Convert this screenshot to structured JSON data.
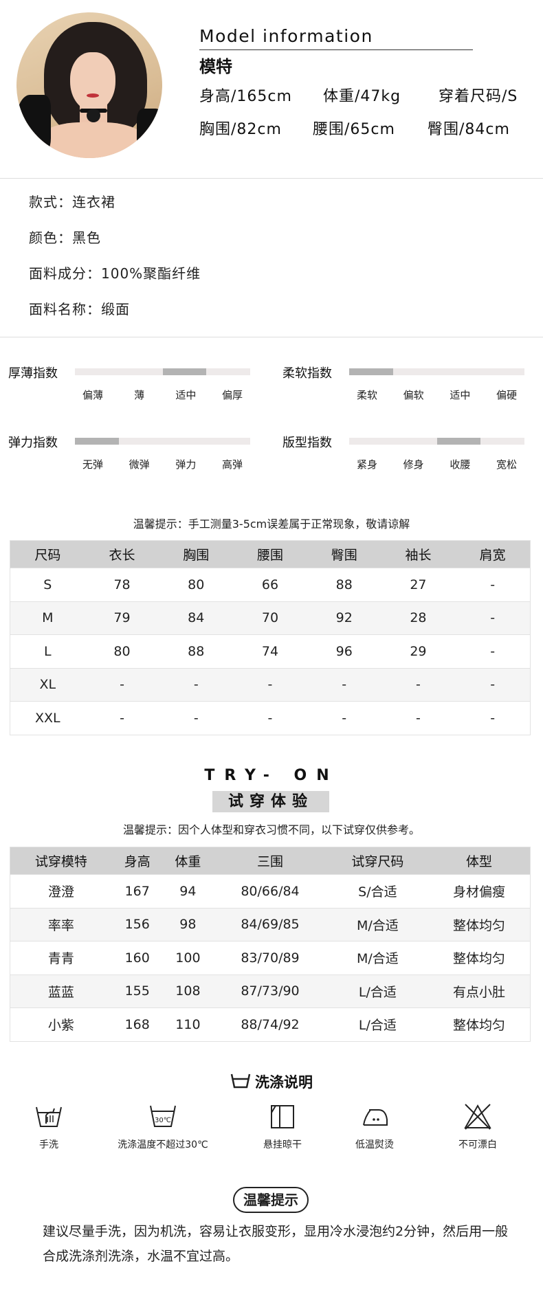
{
  "model": {
    "title": "Model information",
    "subtitle": "模特",
    "stats": [
      "身高/165cm",
      "体重/47kg",
      "穿着尺码/S",
      "胸围/82cm",
      "腰围/65cm",
      "臀围/84cm"
    ]
  },
  "attributes": [
    "款式：连衣裙",
    "颜色：黑色",
    "面料成分：100%聚酯纤维",
    "面料名称：缎面"
  ],
  "indices": [
    {
      "label": "厚薄指数",
      "ticks": [
        "偏薄",
        "薄",
        "适中",
        "偏厚"
      ],
      "selected": 2
    },
    {
      "label": "柔软指数",
      "ticks": [
        "柔软",
        "偏软",
        "适中",
        "偏硬"
      ],
      "selected": 0
    },
    {
      "label": "弹力指数",
      "ticks": [
        "无弹",
        "微弹",
        "弹力",
        "高弹"
      ],
      "selected": 0
    },
    {
      "label": "版型指数",
      "ticks": [
        "紧身",
        "修身",
        "收腰",
        "宽松"
      ],
      "selected": 2
    }
  ],
  "colors": {
    "bar_track": "#eeeaea",
    "bar_fill": "#b3b3b3",
    "header_bg": "#d2d2d2"
  },
  "size_note": "温馨提示：手工测量3-5cm误差属于正常现象，敬请谅解",
  "size_table": {
    "headers": [
      "尺码",
      "衣长",
      "胸围",
      "腰围",
      "臀围",
      "袖长",
      "肩宽"
    ],
    "rows": [
      [
        "S",
        "78",
        "80",
        "66",
        "88",
        "27",
        "-"
      ],
      [
        "M",
        "79",
        "84",
        "70",
        "92",
        "28",
        "-"
      ],
      [
        "L",
        "80",
        "88",
        "74",
        "96",
        "29",
        "-"
      ],
      [
        "XL",
        "-",
        "-",
        "-",
        "-",
        "-",
        "-"
      ],
      [
        "XXL",
        "-",
        "-",
        "-",
        "-",
        "-",
        "-"
      ]
    ]
  },
  "tryon": {
    "title_en": "TRY- ON",
    "title_cn": "试穿体验",
    "note": "温馨提示：因个人体型和穿衣习惯不同，以下试穿仅供参考。",
    "headers": [
      "试穿模特",
      "身高",
      "体重",
      "三围",
      "试穿尺码",
      "体型"
    ],
    "rows": [
      [
        "澄澄",
        "167",
        "94",
        "80/66/84",
        "S/合适",
        "身材偏瘦"
      ],
      [
        "率率",
        "156",
        "98",
        "84/69/85",
        "M/合适",
        "整体均匀"
      ],
      [
        "青青",
        "160",
        "100",
        "83/70/89",
        "M/合适",
        "整体均匀"
      ],
      [
        "蓝蓝",
        "155",
        "108",
        "87/73/90",
        "L/合适",
        "有点小肚"
      ],
      [
        "小紫",
        "168",
        "110",
        "88/74/92",
        "L/合适",
        "整体均匀"
      ]
    ]
  },
  "wash": {
    "title": "洗涤说明",
    "items": [
      {
        "icon": "hand-wash-icon",
        "label": "手洗"
      },
      {
        "icon": "wash-30c-icon",
        "label": "洗涤温度不超过30℃",
        "icon_text": "30℃"
      },
      {
        "icon": "hang-dry-icon",
        "label": "悬挂晾干"
      },
      {
        "icon": "low-iron-icon",
        "label": "低温熨烫"
      },
      {
        "icon": "no-bleach-icon",
        "label": "不可漂白"
      }
    ]
  },
  "tips": {
    "title": "温馨提示",
    "text": "建议尽量手洗，因为机洗，容易让衣服变形，显用冷水浸泡约2分钟，然后用一般合成洗涤剂洗涤，水温不宜过高。"
  }
}
